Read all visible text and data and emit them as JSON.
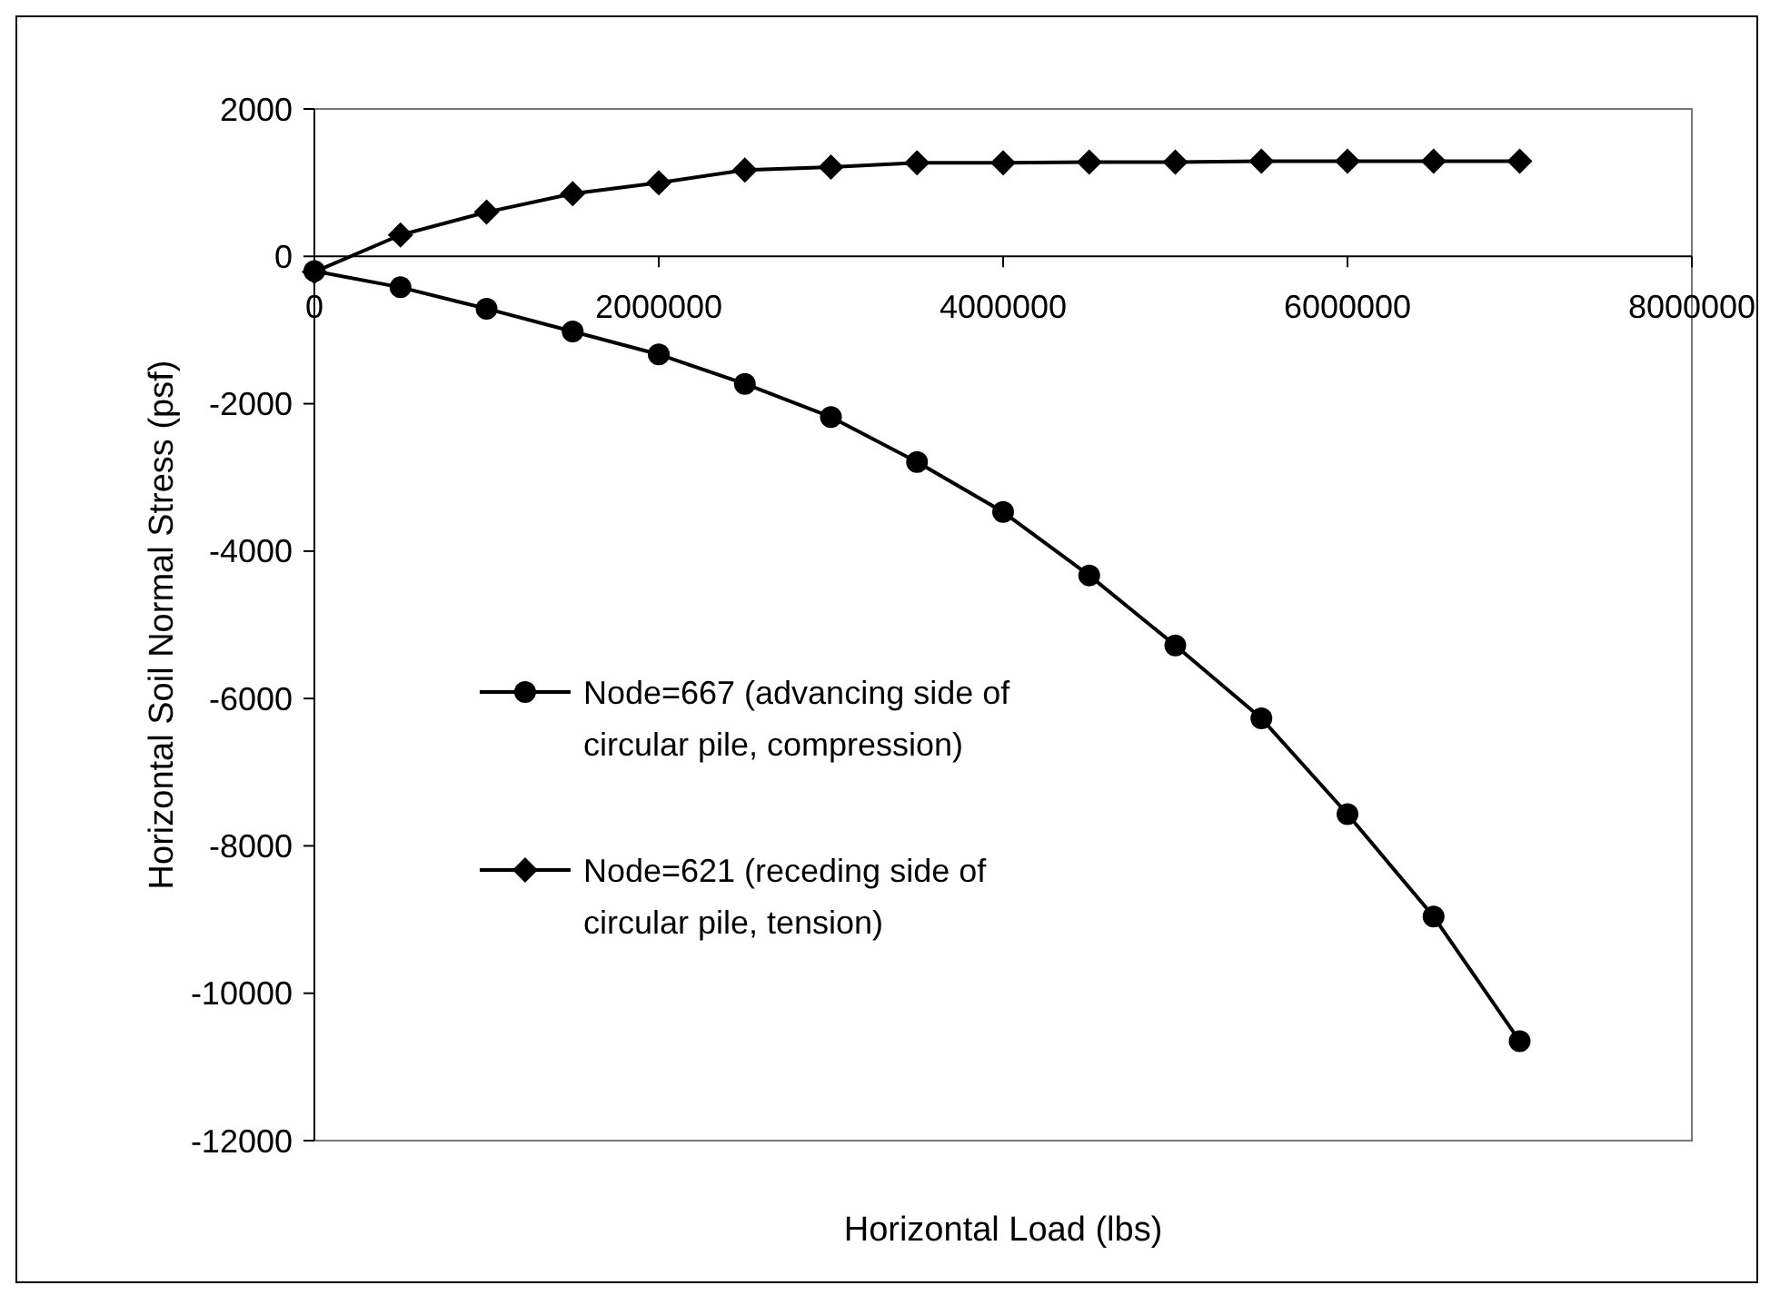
{
  "chart_data": {
    "type": "line",
    "xlabel": "Horizontal Load (lbs)",
    "ylabel": "Horizontal Soil Normal Stress (psf)",
    "x": [
      0,
      500000,
      1000000,
      1500000,
      2000000,
      2500000,
      3000000,
      3500000,
      4000000,
      4500000,
      5000000,
      5500000,
      6000000,
      6500000,
      7000000
    ],
    "series": [
      {
        "name": "Node=667 (advancing side of circular pile, compression)",
        "color": "#000000",
        "marker": "circle",
        "values": [
          -200,
          -420,
          -710,
          -1020,
          -1330,
          -1730,
          -2180,
          -2790,
          -3470,
          -4330,
          -5280,
          -6270,
          -7570,
          -8960,
          -10650
        ]
      },
      {
        "name": "Node=621 (receding side of circular pile, tension)",
        "color": "#000000",
        "marker": "diamond",
        "values": [
          -210,
          290,
          600,
          850,
          1000,
          1170,
          1210,
          1270,
          1270,
          1280,
          1280,
          1290,
          1290,
          1290,
          1290
        ]
      }
    ],
    "xlim": [
      0,
      8000000
    ],
    "xticks": [
      0,
      2000000,
      4000000,
      6000000,
      8000000
    ],
    "ylim": [
      -12000,
      2000
    ],
    "yticks": [
      -12000,
      -10000,
      -8000,
      -6000,
      -4000,
      -2000,
      0,
      2000
    ],
    "grid": false,
    "legend": "center",
    "line_style": "solid"
  }
}
